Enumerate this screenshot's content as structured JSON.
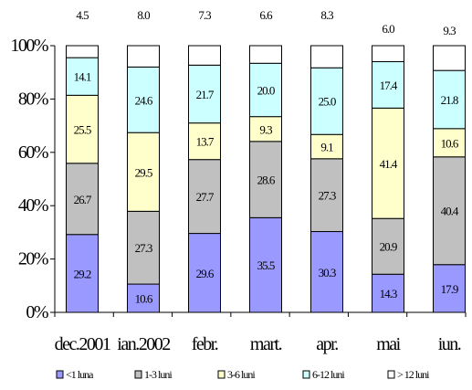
{
  "chart_data": {
    "type": "stacked-bar-100",
    "categories": [
      "dec.2001",
      "ian.2002",
      "febr.",
      "mart.",
      "apr.",
      "mai",
      "iun."
    ],
    "series": [
      {
        "name": "<1 luna",
        "color": "#9999ff",
        "values": [
          29.2,
          10.6,
          29.6,
          35.5,
          30.3,
          14.3,
          17.9
        ]
      },
      {
        "name": "1-3 luni",
        "color": "#c0c0c0",
        "values": [
          26.7,
          27.3,
          27.7,
          28.6,
          27.3,
          20.9,
          40.4
        ]
      },
      {
        "name": "3-6 luni",
        "color": "#ffffcc",
        "values": [
          25.5,
          29.5,
          13.7,
          9.3,
          9.1,
          41.4,
          10.6
        ]
      },
      {
        "name": "6-12 luni",
        "color": "#ccffff",
        "values": [
          14.1,
          24.6,
          21.7,
          20.0,
          25.0,
          17.4,
          21.8
        ]
      },
      {
        "name": "> 12 luni",
        "color": "#ffffff",
        "values": [
          4.5,
          8.0,
          7.3,
          6.6,
          8.3,
          6.0,
          9.3
        ]
      }
    ],
    "value_labels": {
      "<1 luna": [
        "29.2",
        "10.6",
        "29.6",
        "35.5",
        "30.3",
        "14.3",
        "17.9"
      ],
      "1-3 luni": [
        "26.7",
        "27.3",
        "27.7",
        "28.6",
        "27.3",
        "20.9",
        "40.4"
      ],
      "3-6 luni": [
        "25.5",
        "29.5",
        "13.7",
        "9.3",
        "9.1",
        "41.4",
        "10.6"
      ],
      "6-12 luni": [
        "14.1",
        "24.6",
        "21.7",
        "20.0",
        "25.0",
        "17.4",
        "21.8"
      ],
      "> 12 luni": [
        "4.5",
        "8.0",
        "7.3",
        "6.6",
        "8.3",
        "6.0",
        "9.3"
      ]
    },
    "y_ticks": [
      "0%",
      "20%",
      "40%",
      "60%",
      "80%",
      "100%"
    ],
    "ylim": [
      0,
      100
    ],
    "grid": false,
    "legend_position": "bottom"
  }
}
